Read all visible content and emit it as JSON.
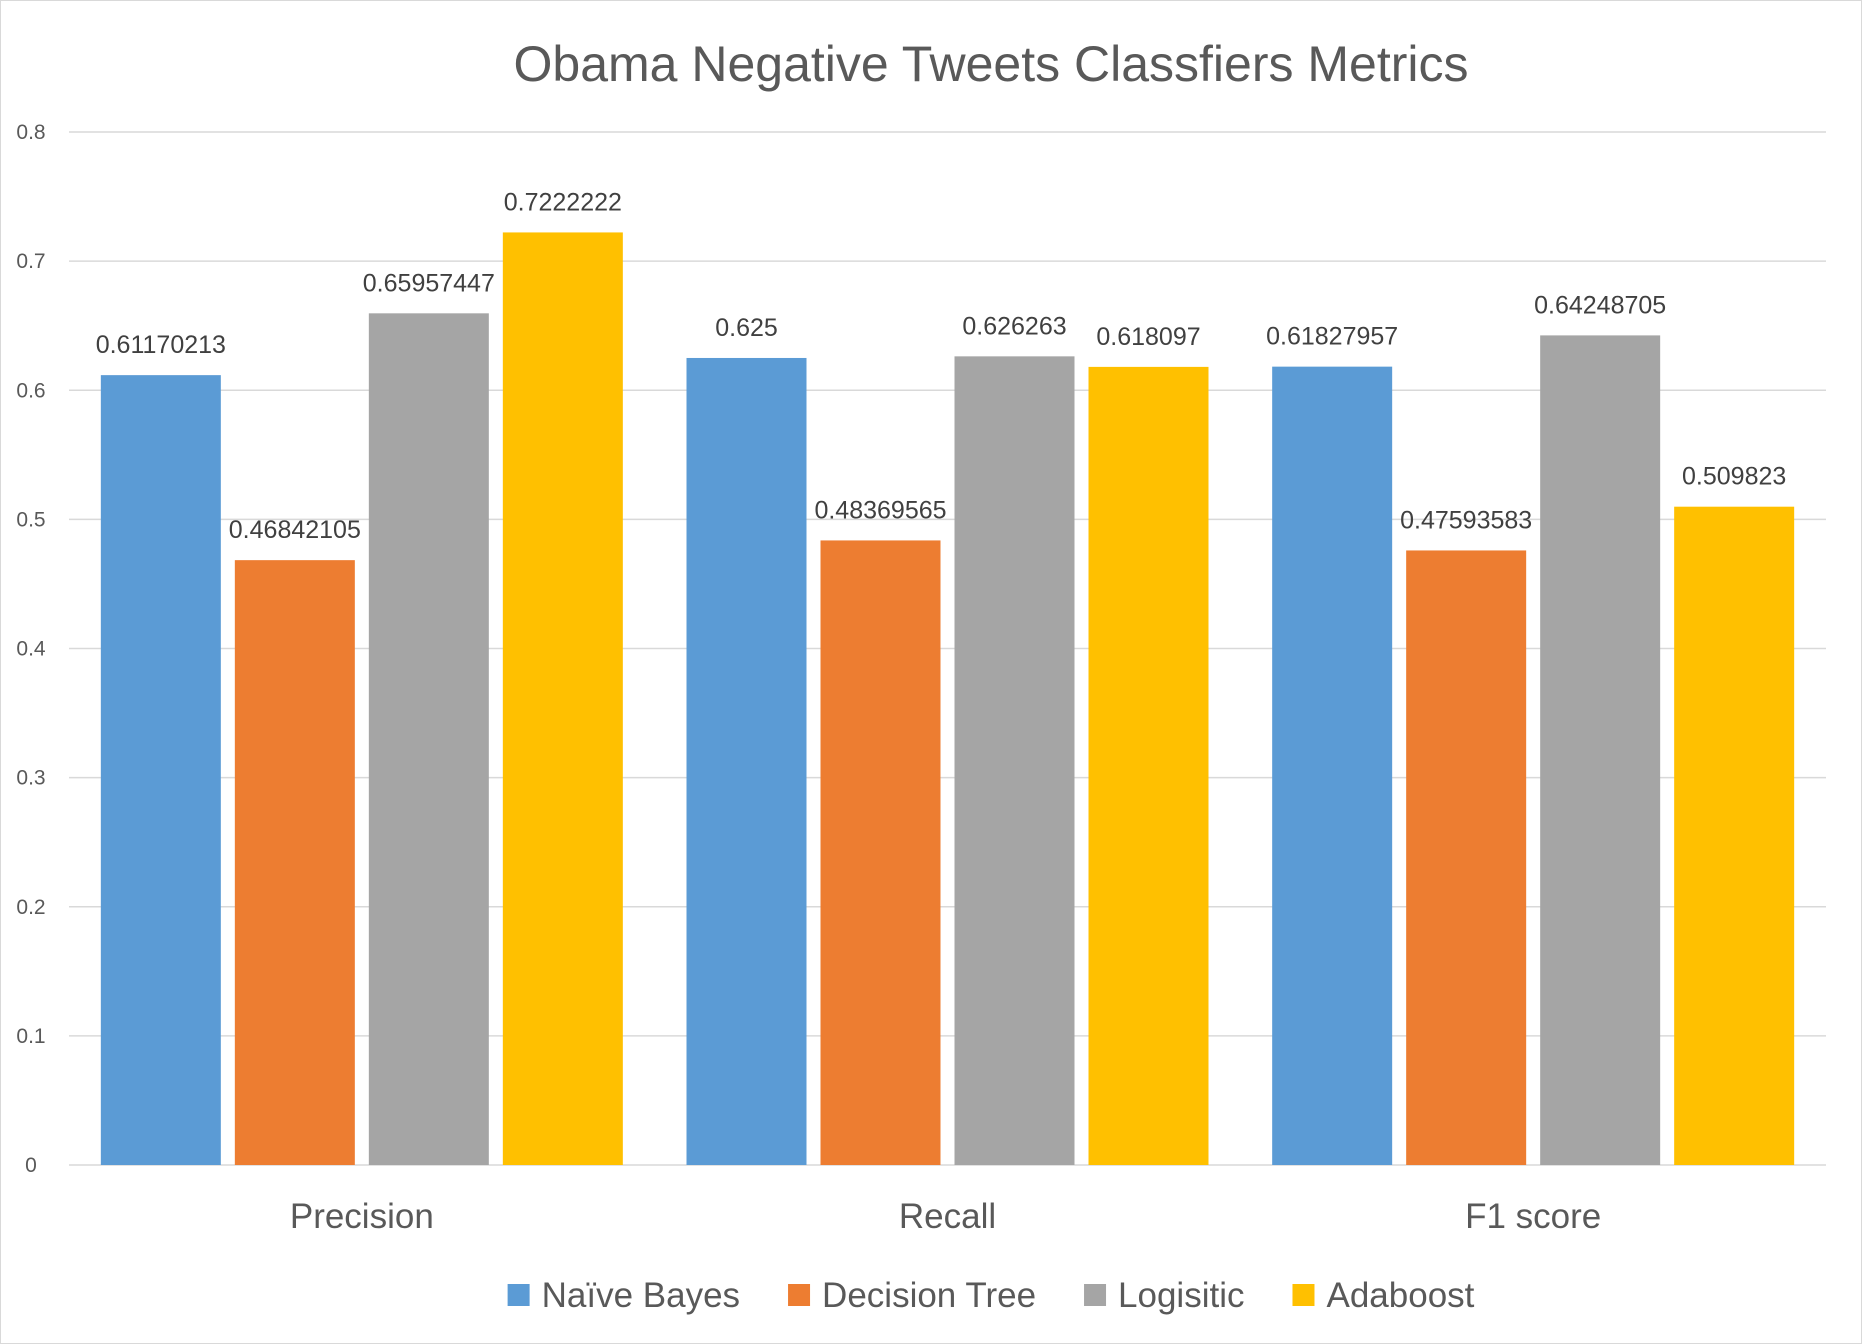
{
  "chart_data": {
    "type": "bar",
    "title": "Obama Negative Tweets Classfiers Metrics",
    "xlabel": "",
    "ylabel": "",
    "ylim": [
      0,
      0.8
    ],
    "yticks": [
      "0",
      "0.1",
      "0.2",
      "0.3",
      "0.4",
      "0.5",
      "0.6",
      "0.7",
      "0.8"
    ],
    "grid": true,
    "legend_position": "bottom",
    "categories": [
      "Precision",
      "Recall",
      "F1 score"
    ],
    "series": [
      {
        "name": "Naïve Bayes",
        "color": "#5B9BD5",
        "values": [
          0.61170213,
          0.625,
          0.61827957
        ],
        "labels": [
          "0.61170213",
          "0.625",
          "0.61827957"
        ]
      },
      {
        "name": "Decision Tree",
        "color": "#ED7D31",
        "values": [
          0.46842105,
          0.48369565,
          0.47593583
        ],
        "labels": [
          "0.46842105",
          "0.48369565",
          "0.47593583"
        ]
      },
      {
        "name": "Logisitic",
        "color": "#A5A5A5",
        "values": [
          0.65957447,
          0.626263,
          0.64248705
        ],
        "labels": [
          "0.65957447",
          "0.626263",
          "0.64248705"
        ]
      },
      {
        "name": "Adaboost",
        "color": "#FFC000",
        "values": [
          0.7222222,
          0.618097,
          0.509823
        ],
        "labels": [
          "0.7222222",
          "0.618097",
          "0.509823"
        ]
      }
    ]
  }
}
